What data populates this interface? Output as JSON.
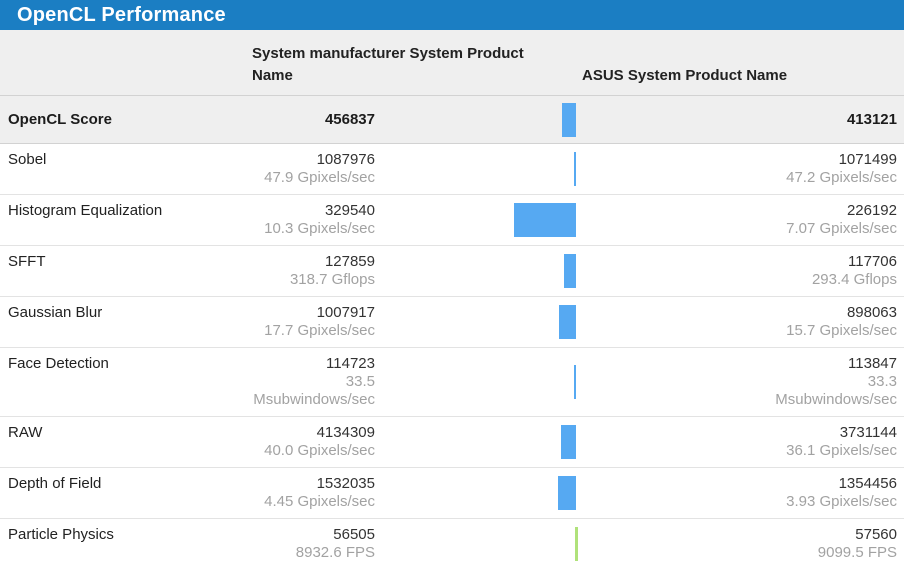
{
  "title": "OpenCL Performance",
  "colors": {
    "title_bar_bg": "#1b7ec3",
    "header_bg": "#efefef",
    "bar_left_win": "#56a9f2",
    "bar_right_win": "#b0e27a"
  },
  "header": {
    "left_system": "System manufacturer System Product Name",
    "right_system": "ASUS System Product Name"
  },
  "score_row": {
    "label": "OpenCL Score",
    "left_value": "456837",
    "right_value": "413121"
  },
  "rows": [
    {
      "label": "Sobel",
      "left_value": "1087976",
      "left_sub": "47.9 Gpixels/sec",
      "right_value": "1071499",
      "right_sub": "47.2 Gpixels/sec"
    },
    {
      "label": "Histogram Equalization",
      "left_value": "329540",
      "left_sub": "10.3 Gpixels/sec",
      "right_value": "226192",
      "right_sub": "7.07 Gpixels/sec"
    },
    {
      "label": "SFFT",
      "left_value": "127859",
      "left_sub": "318.7 Gflops",
      "right_value": "117706",
      "right_sub": "293.4 Gflops"
    },
    {
      "label": "Gaussian Blur",
      "left_value": "1007917",
      "left_sub": "17.7 Gpixels/sec",
      "right_value": "898063",
      "right_sub": "15.7 Gpixels/sec"
    },
    {
      "label": "Face Detection",
      "left_value": "114723",
      "left_sub": "33.5 Msubwindows/sec",
      "right_value": "113847",
      "right_sub": "33.3 Msubwindows/sec"
    },
    {
      "label": "RAW",
      "left_value": "4134309",
      "left_sub": "40.0 Gpixels/sec",
      "right_value": "3731144",
      "right_sub": "36.1 Gpixels/sec"
    },
    {
      "label": "Depth of Field",
      "left_value": "1532035",
      "left_sub": "4.45 Gpixels/sec",
      "right_value": "1354456",
      "right_sub": "3.93 Gpixels/sec"
    },
    {
      "label": "Particle Physics",
      "left_value": "56505",
      "left_sub": "8932.6 FPS",
      "right_value": "57560",
      "right_sub": "9099.5 FPS"
    }
  ],
  "chart_data": {
    "type": "table",
    "title": "OpenCL Performance",
    "categories": [
      "OpenCL Score",
      "Sobel",
      "Histogram Equalization",
      "SFFT",
      "Gaussian Blur",
      "Face Detection",
      "RAW",
      "Depth of Field",
      "Particle Physics"
    ],
    "series": [
      {
        "name": "System manufacturer System Product Name",
        "values": [
          456837,
          1087976,
          329540,
          127859,
          1007917,
          114723,
          4134309,
          1532035,
          56505
        ],
        "rates": [
          "",
          "47.9 Gpixels/sec",
          "10.3 Gpixels/sec",
          "318.7 Gflops",
          "17.7 Gpixels/sec",
          "33.5 Msubwindows/sec",
          "40.0 Gpixels/sec",
          "4.45 Gpixels/sec",
          "8932.6 FPS"
        ]
      },
      {
        "name": "ASUS System Product Name",
        "values": [
          413121,
          1071499,
          226192,
          117706,
          898063,
          113847,
          3731144,
          1354456,
          57560
        ],
        "rates": [
          "",
          "47.2 Gpixels/sec",
          "7.07 Gpixels/sec",
          "293.4 Gflops",
          "15.7 Gpixels/sec",
          "33.3 Msubwindows/sec",
          "36.1 Gpixels/sec",
          "3.93 Gpixels/sec",
          "9099.5 FPS"
        ]
      }
    ],
    "layout_hints": "center bars show relative difference; blue bar extends left when first system wins, green bar extends right when second system wins"
  }
}
